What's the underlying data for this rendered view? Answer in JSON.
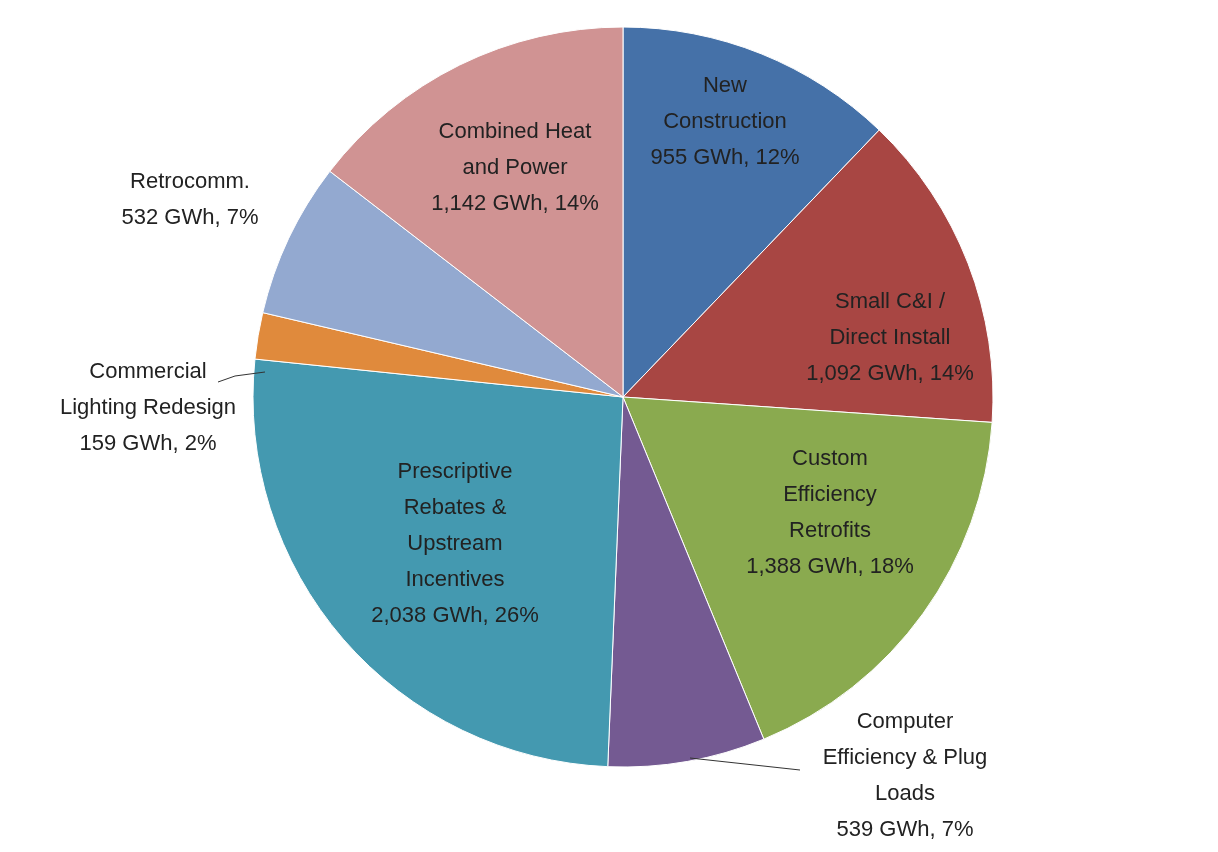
{
  "chart_data": {
    "type": "pie",
    "categories": [
      "New Construction",
      "Small C&I / Direct Install",
      "Custom Efficiency Retrofits",
      "Computer Efficiency & Plug Loads",
      "Prescriptive Rebates & Upstream Incentives",
      "Commercial Lighting Redesign",
      "Retrocomm.",
      "Combined Heat and Power"
    ],
    "values": [
      955,
      1092,
      1388,
      539,
      2038,
      159,
      532,
      1142
    ],
    "value_labels": [
      "955 GWh, 12%",
      "1,092 GWh, 14%",
      "1,388 GWh, 18%",
      "539 GWh, 7%",
      "2,038 GWh, 26%",
      "159 GWh, 2%",
      "532 GWh, 7%",
      "1,142 GWh, 14%"
    ],
    "colors": [
      "#4571a8",
      "#a84643",
      "#8aaa4f",
      "#745a92",
      "#4499b0",
      "#e08a3c",
      "#93a9d0",
      "#d09393"
    ]
  }
}
